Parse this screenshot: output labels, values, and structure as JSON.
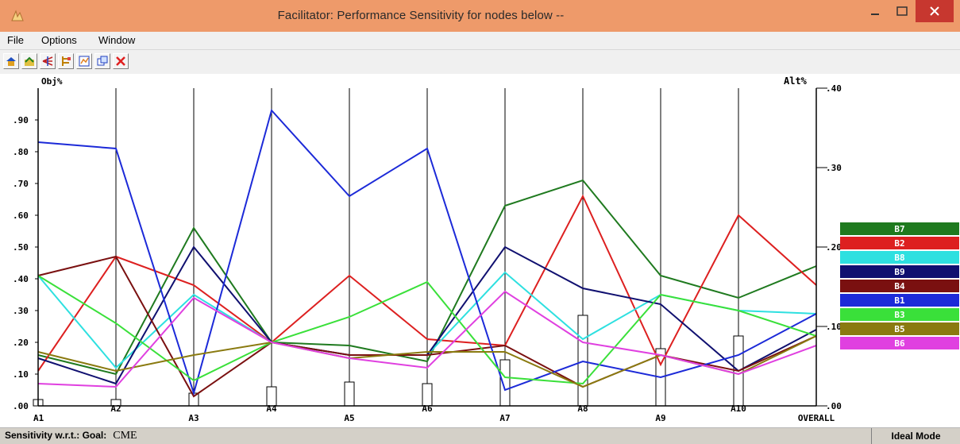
{
  "window": {
    "title": "Facilitator: Performance Sensitivity for nodes below --"
  },
  "menu": {
    "items": [
      "File",
      "Options",
      "Window"
    ]
  },
  "toolbar": {
    "icons": [
      "home-icon",
      "open-icon",
      "sensitivity-icon",
      "tree-icon",
      "chart-icon",
      "windows-icon",
      "close-icon"
    ]
  },
  "status": {
    "left_label": "Sensitivity w.r.t.: Goal:",
    "goal": "CME",
    "mode": "Ideal Mode"
  },
  "chart_data": {
    "type": "line",
    "ylabel": "Obj%",
    "y2label": "Alt%",
    "ylim": [
      0,
      1.0
    ],
    "y2lim": [
      0,
      0.4
    ],
    "yticks": [
      ".00",
      ".10",
      ".20",
      ".30",
      ".40",
      ".50",
      ".60",
      ".70",
      ".80",
      ".90"
    ],
    "y2ticks": [
      ".00",
      ".10",
      ".20",
      ".30",
      ".40"
    ],
    "categories": [
      "A1",
      "A2",
      "A3",
      "A4",
      "A5",
      "A6",
      "A7",
      "A8",
      "A9",
      "A10",
      "OVERALL"
    ],
    "bars": [
      0.02,
      0.02,
      0.04,
      0.06,
      0.075,
      0.07,
      0.145,
      0.285,
      0.18,
      0.22
    ],
    "series": [
      {
        "name": "B7",
        "color": "#1f7a1f",
        "values": [
          0.16,
          0.1,
          0.56,
          0.2,
          0.19,
          0.14,
          0.63,
          0.71,
          0.41,
          0.34,
          0.44
        ]
      },
      {
        "name": "B2",
        "color": "#dd2020",
        "values": [
          0.11,
          0.47,
          0.38,
          0.2,
          0.41,
          0.21,
          0.19,
          0.66,
          0.13,
          0.6,
          0.38
        ]
      },
      {
        "name": "B8",
        "color": "#2ee0e0",
        "values": [
          0.41,
          0.12,
          0.35,
          0.2,
          0.16,
          0.16,
          0.42,
          0.21,
          0.35,
          0.3,
          0.29
        ]
      },
      {
        "name": "B9",
        "color": "#101070",
        "values": [
          0.15,
          0.07,
          0.5,
          0.2,
          0.16,
          0.16,
          0.5,
          0.37,
          0.32,
          0.11,
          0.24
        ]
      },
      {
        "name": "B4",
        "color": "#7a1010",
        "values": [
          0.41,
          0.47,
          0.03,
          0.2,
          0.16,
          0.16,
          0.19,
          0.06,
          0.16,
          0.11,
          0.22
        ]
      },
      {
        "name": "B1",
        "color": "#1c2ad8",
        "values": [
          0.83,
          0.81,
          0.04,
          0.93,
          0.66,
          0.81,
          0.05,
          0.14,
          0.09,
          0.16,
          0.29
        ]
      },
      {
        "name": "B3",
        "color": "#3ae03a",
        "values": [
          0.41,
          0.26,
          0.08,
          0.2,
          0.28,
          0.39,
          0.09,
          0.07,
          0.35,
          0.3,
          0.22
        ]
      },
      {
        "name": "B5",
        "color": "#8a7a10",
        "values": [
          0.17,
          0.11,
          0.16,
          0.2,
          0.15,
          0.17,
          0.17,
          0.06,
          0.16,
          0.1,
          0.22
        ]
      },
      {
        "name": "B6",
        "color": "#e040e0",
        "values": [
          0.07,
          0.06,
          0.34,
          0.2,
          0.15,
          0.12,
          0.36,
          0.2,
          0.16,
          0.1,
          0.19
        ]
      }
    ]
  }
}
